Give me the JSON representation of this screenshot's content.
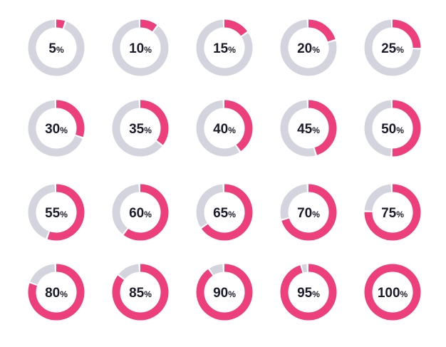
{
  "chart_data": {
    "type": "pie",
    "percent_suffix": "%",
    "colors": {
      "filled": "#ee3f7d",
      "remaining": "#d4d4de",
      "text": "#1c1c2a",
      "background": "#ffffff"
    },
    "items": [
      {
        "value": 5,
        "label": "5"
      },
      {
        "value": 10,
        "label": "10"
      },
      {
        "value": 15,
        "label": "15"
      },
      {
        "value": 20,
        "label": "20"
      },
      {
        "value": 25,
        "label": "25"
      },
      {
        "value": 30,
        "label": "30"
      },
      {
        "value": 35,
        "label": "35"
      },
      {
        "value": 40,
        "label": "40"
      },
      {
        "value": 45,
        "label": "45"
      },
      {
        "value": 50,
        "label": "50"
      },
      {
        "value": 55,
        "label": "55"
      },
      {
        "value": 60,
        "label": "60"
      },
      {
        "value": 65,
        "label": "65"
      },
      {
        "value": 70,
        "label": "70"
      },
      {
        "value": 75,
        "label": "75"
      },
      {
        "value": 80,
        "label": "80"
      },
      {
        "value": 85,
        "label": "85"
      },
      {
        "value": 90,
        "label": "90"
      },
      {
        "value": 95,
        "label": "95"
      },
      {
        "value": 100,
        "label": "100"
      }
    ]
  }
}
